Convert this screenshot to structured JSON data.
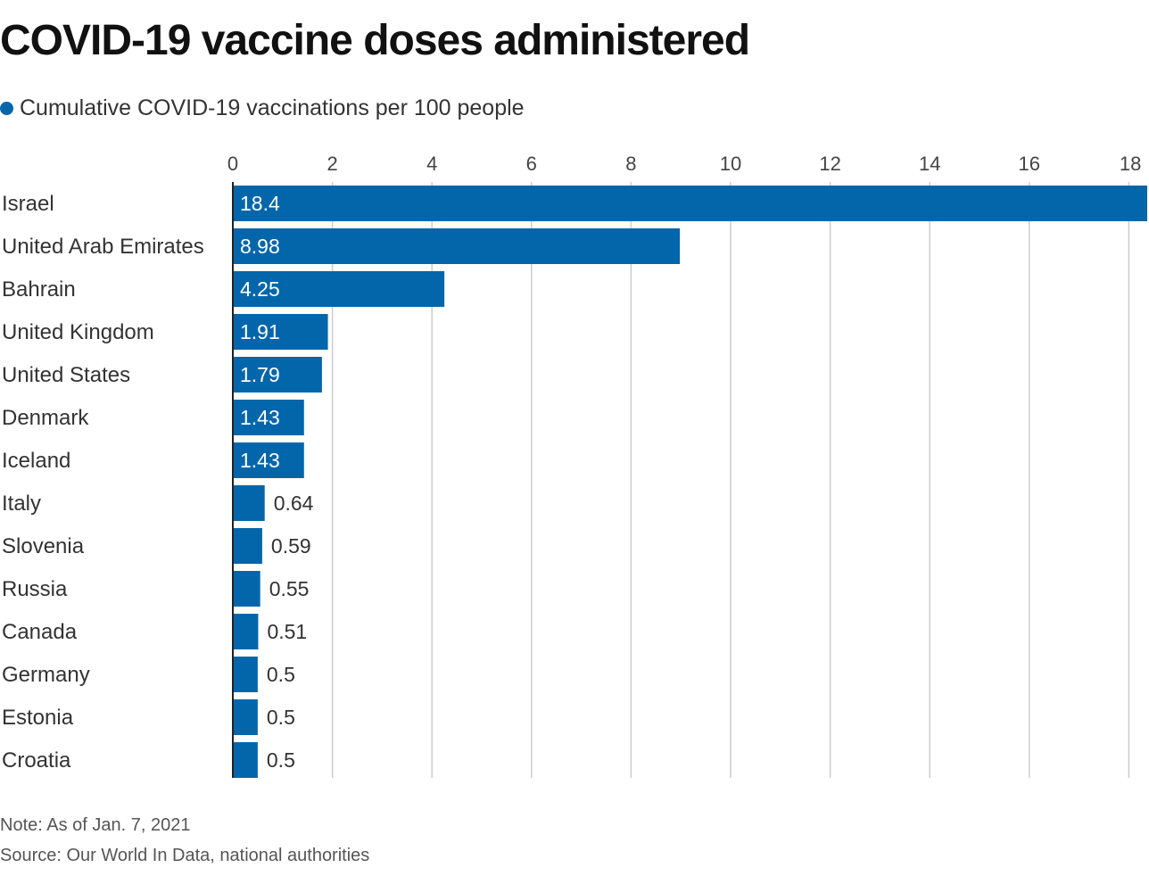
{
  "title": "COVID-19 vaccine doses administered",
  "legend_label": "Cumulative COVID-19 vaccinations per 100 people",
  "note": "Note: As of Jan. 7, 2021",
  "source": "Source: Our World In Data, national authorities",
  "colors": {
    "bar": "#0366ab",
    "grid": "#cccccc",
    "axis": "#222222",
    "inside_label": "#ffffff",
    "outside_label": "#333333"
  },
  "chart_data": {
    "type": "bar",
    "orientation": "horizontal",
    "categories": [
      "Israel",
      "United Arab Emirates",
      "Bahrain",
      "United Kingdom",
      "United States",
      "Denmark",
      "Iceland",
      "Italy",
      "Slovenia",
      "Russia",
      "Canada",
      "Germany",
      "Estonia",
      "Croatia"
    ],
    "values": [
      18.4,
      8.98,
      4.25,
      1.91,
      1.79,
      1.43,
      1.43,
      0.64,
      0.59,
      0.55,
      0.51,
      0.5,
      0.5,
      0.5
    ],
    "value_labels": [
      "18.4",
      "8.98",
      "4.25",
      "1.91",
      "1.79",
      "1.43",
      "1.43",
      "0.64",
      "0.59",
      "0.55",
      "0.51",
      "0.5",
      "0.5",
      "0.5"
    ],
    "x_ticks": [
      0,
      2,
      4,
      6,
      8,
      10,
      12,
      14,
      16,
      18
    ],
    "x_tick_labels": [
      "0",
      "2",
      "4",
      "6",
      "8",
      "10",
      "12",
      "14",
      "16",
      "18"
    ],
    "xlim": [
      0,
      18.4
    ],
    "grid": true,
    "axis_position": "top"
  }
}
